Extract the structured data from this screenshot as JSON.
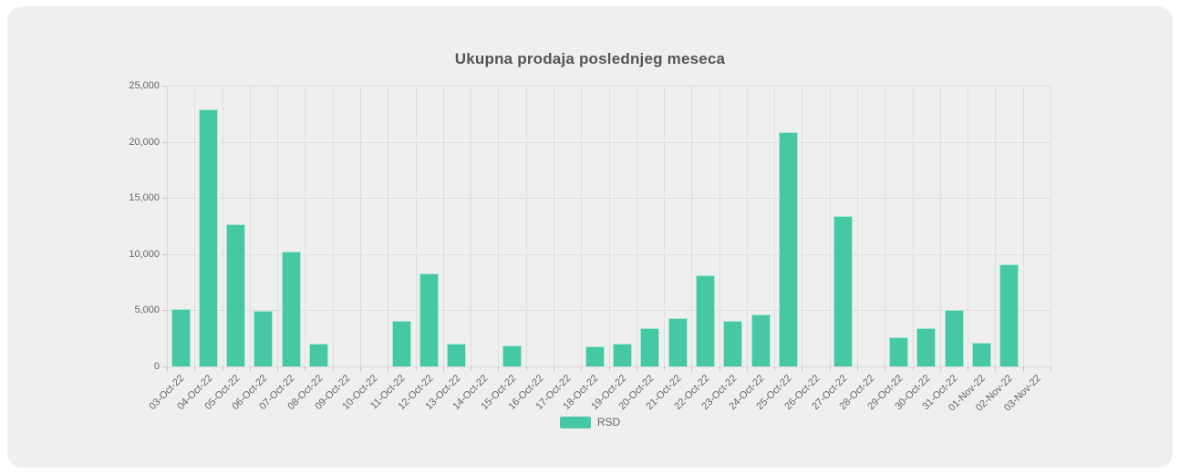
{
  "chart_data": {
    "type": "bar",
    "title": "Ukupna prodaja poslednjeg meseca",
    "categories": [
      "03-Oct-22",
      "04-Oct-22",
      "05-Oct-22",
      "06-Oct-22",
      "07-Oct-22",
      "08-Oct-22",
      "09-Oct-22",
      "10-Oct-22",
      "11-Oct-22",
      "12-Oct-22",
      "13-Oct-22",
      "14-Oct-22",
      "15-Oct-22",
      "16-Oct-22",
      "17-Oct-22",
      "18-Oct-22",
      "19-Oct-22",
      "20-Oct-22",
      "21-Oct-22",
      "22-Oct-22",
      "23-Oct-22",
      "24-Oct-22",
      "25-Oct-22",
      "26-Oct-22",
      "27-Oct-22",
      "28-Oct-22",
      "29-Oct-22",
      "30-Oct-22",
      "31-Oct-22",
      "01-Nov-22",
      "02-Nov-22",
      "03-Nov-22"
    ],
    "series": [
      {
        "name": "RSD",
        "values": [
          5100,
          22900,
          12650,
          4950,
          10200,
          2000,
          0,
          0,
          4050,
          8250,
          2050,
          0,
          1850,
          0,
          0,
          1800,
          2000,
          3400,
          4300,
          8100,
          4100,
          4650,
          20850,
          0,
          13400,
          0,
          2600,
          3400,
          5000,
          2100,
          9100,
          0
        ]
      }
    ],
    "xlabel": "",
    "ylabel": "",
    "ylim": [
      0,
      25000
    ],
    "ytick_step": 5000,
    "ytick_labels": [
      "0",
      "5,000",
      "10,000",
      "15,000",
      "20,000",
      "25,000"
    ],
    "grid": true,
    "legend_position": "bottom",
    "colors": {
      "bar": "#45c8a3",
      "card_background": "#efefef",
      "page_background": "#ffffff",
      "grid": "#dedede",
      "tick": "#c6c6c6",
      "axis_text": "#666666",
      "title_text": "#545454"
    }
  }
}
